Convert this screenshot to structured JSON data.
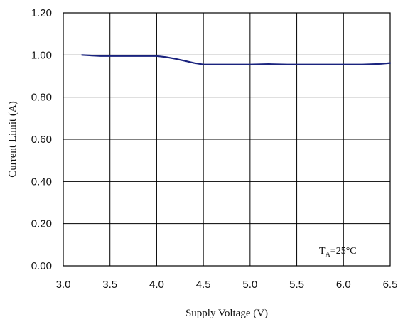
{
  "chart_data": {
    "type": "line",
    "xlabel": "Supply Voltage (V)",
    "ylabel": "Current Limit (A)",
    "xlim": [
      3.0,
      6.5
    ],
    "ylim": [
      0.0,
      1.2
    ],
    "grid": true,
    "x_ticks": [
      "3.0",
      "3.5",
      "4.0",
      "4.5",
      "5.0",
      "5.5",
      "6.0",
      "6.5"
    ],
    "y_ticks": [
      "0.00",
      "0.20",
      "0.40",
      "0.60",
      "0.80",
      "1.00",
      "1.20"
    ],
    "annotation": {
      "prefix": "T",
      "subscript": "A",
      "suffix": "=25°C"
    },
    "series": [
      {
        "color": "#1a237e",
        "x": [
          3.2,
          3.4,
          3.6,
          3.8,
          4.0,
          4.1,
          4.2,
          4.3,
          4.4,
          4.5,
          4.6,
          4.8,
          5.0,
          5.2,
          5.4,
          5.6,
          5.8,
          6.0,
          6.2,
          6.4,
          6.5
        ],
        "y": [
          1.0,
          0.995,
          0.995,
          0.995,
          0.995,
          0.99,
          0.982,
          0.972,
          0.962,
          0.955,
          0.955,
          0.955,
          0.955,
          0.957,
          0.955,
          0.955,
          0.955,
          0.955,
          0.955,
          0.958,
          0.962
        ]
      }
    ]
  }
}
